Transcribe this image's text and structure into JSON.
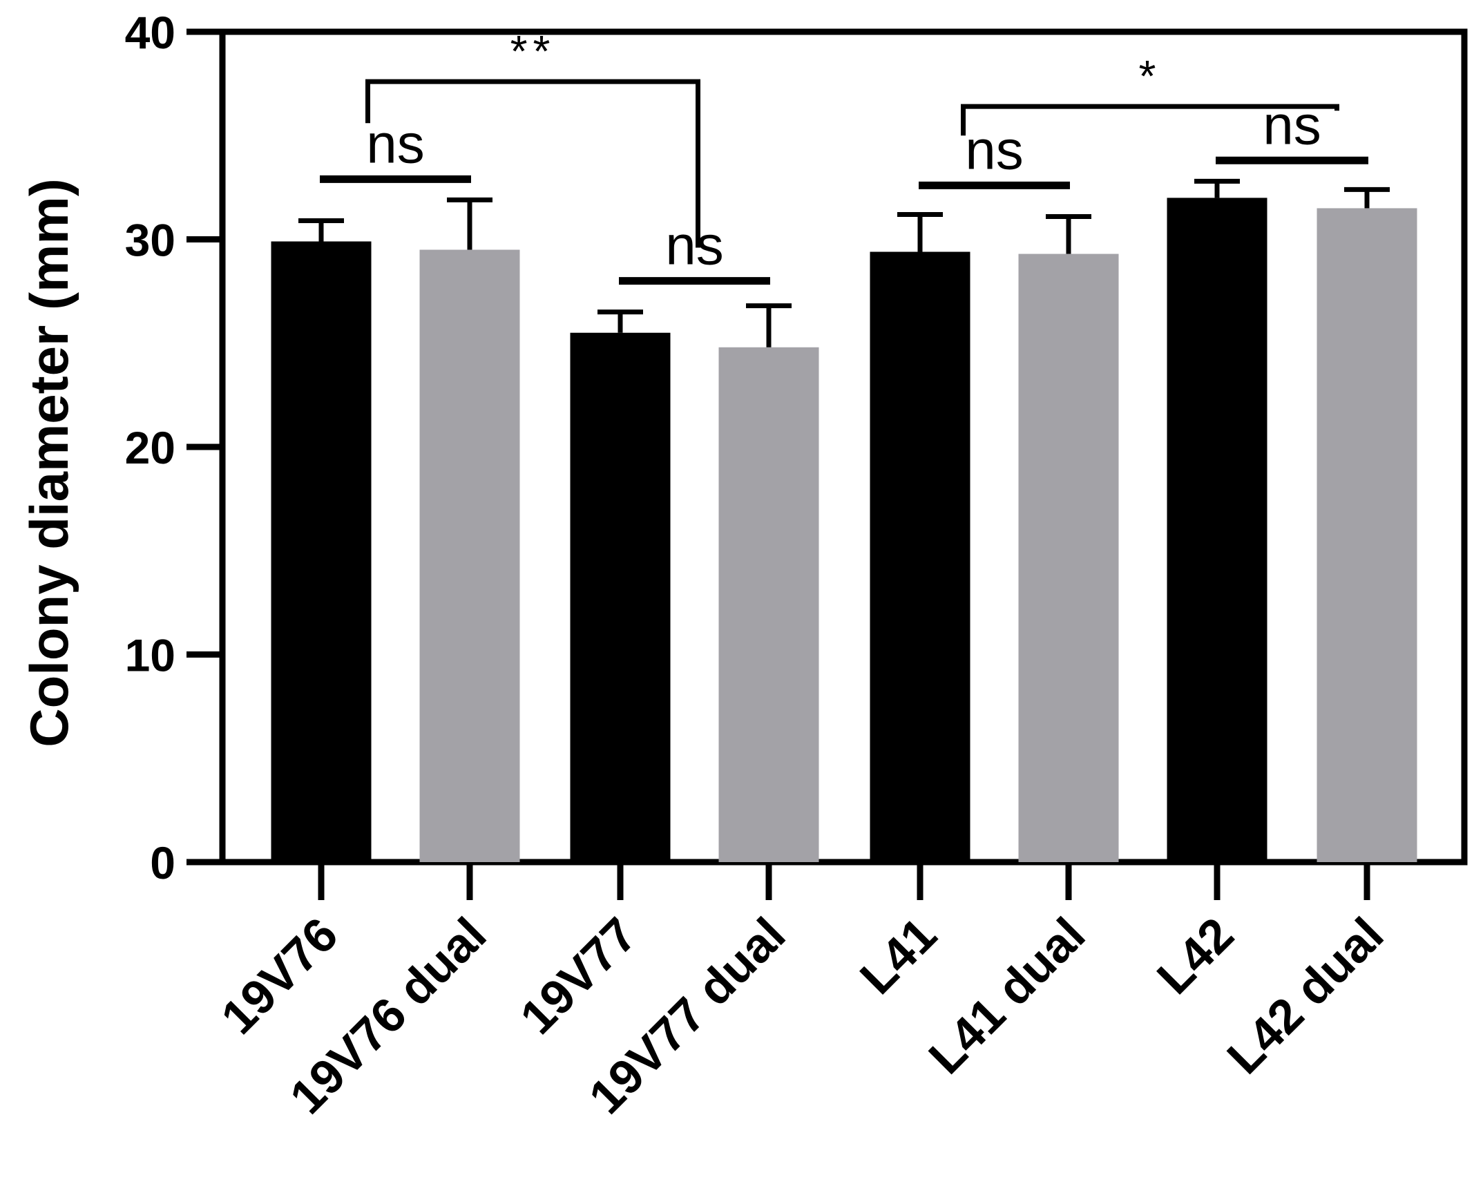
{
  "chart_data": {
    "type": "bar",
    "title": "",
    "xlabel": "",
    "ylabel": "Colony diameter (mm)",
    "ylim": [
      0,
      40
    ],
    "yticks": [
      "0",
      "10",
      "20",
      "30",
      "40"
    ],
    "categories": [
      "19V76",
      "19V76 dual",
      "19V77",
      "19V77 dual",
      "L41",
      "L41 dual",
      "L42",
      "L42 dual"
    ],
    "values": [
      29.9,
      29.5,
      25.5,
      24.8,
      29.4,
      29.3,
      32.0,
      31.5
    ],
    "errors": [
      1.0,
      2.4,
      1.0,
      2.0,
      1.8,
      1.8,
      0.8,
      0.9
    ],
    "colors": [
      "#000000",
      "#a3a2a7",
      "#000000",
      "#a3a2a7",
      "#000000",
      "#a3a2a7",
      "#000000",
      "#a3a2a7"
    ],
    "significance": [
      {
        "label": "ns",
        "from": 0,
        "to": 1,
        "type": "bar",
        "level": 32.9
      },
      {
        "label": "ns",
        "from": 2,
        "to": 3,
        "type": "bar",
        "level": 28.0
      },
      {
        "label": "ns",
        "from": 4,
        "to": 5,
        "type": "bar",
        "level": 32.6
      },
      {
        "label": "ns",
        "from": 6,
        "to": 7,
        "type": "bar",
        "level": 33.8
      },
      {
        "label": "**",
        "from": 0.5,
        "to": 2.5,
        "type": "bracket",
        "level": 37.6,
        "drop_from": 35.6,
        "drop_to": 29.6
      },
      {
        "label": "*",
        "from": 4.5,
        "to": 6.5,
        "type": "bracket",
        "level": 36.4,
        "drop_from": 35.0,
        "drop_to": 36.2
      }
    ]
  }
}
